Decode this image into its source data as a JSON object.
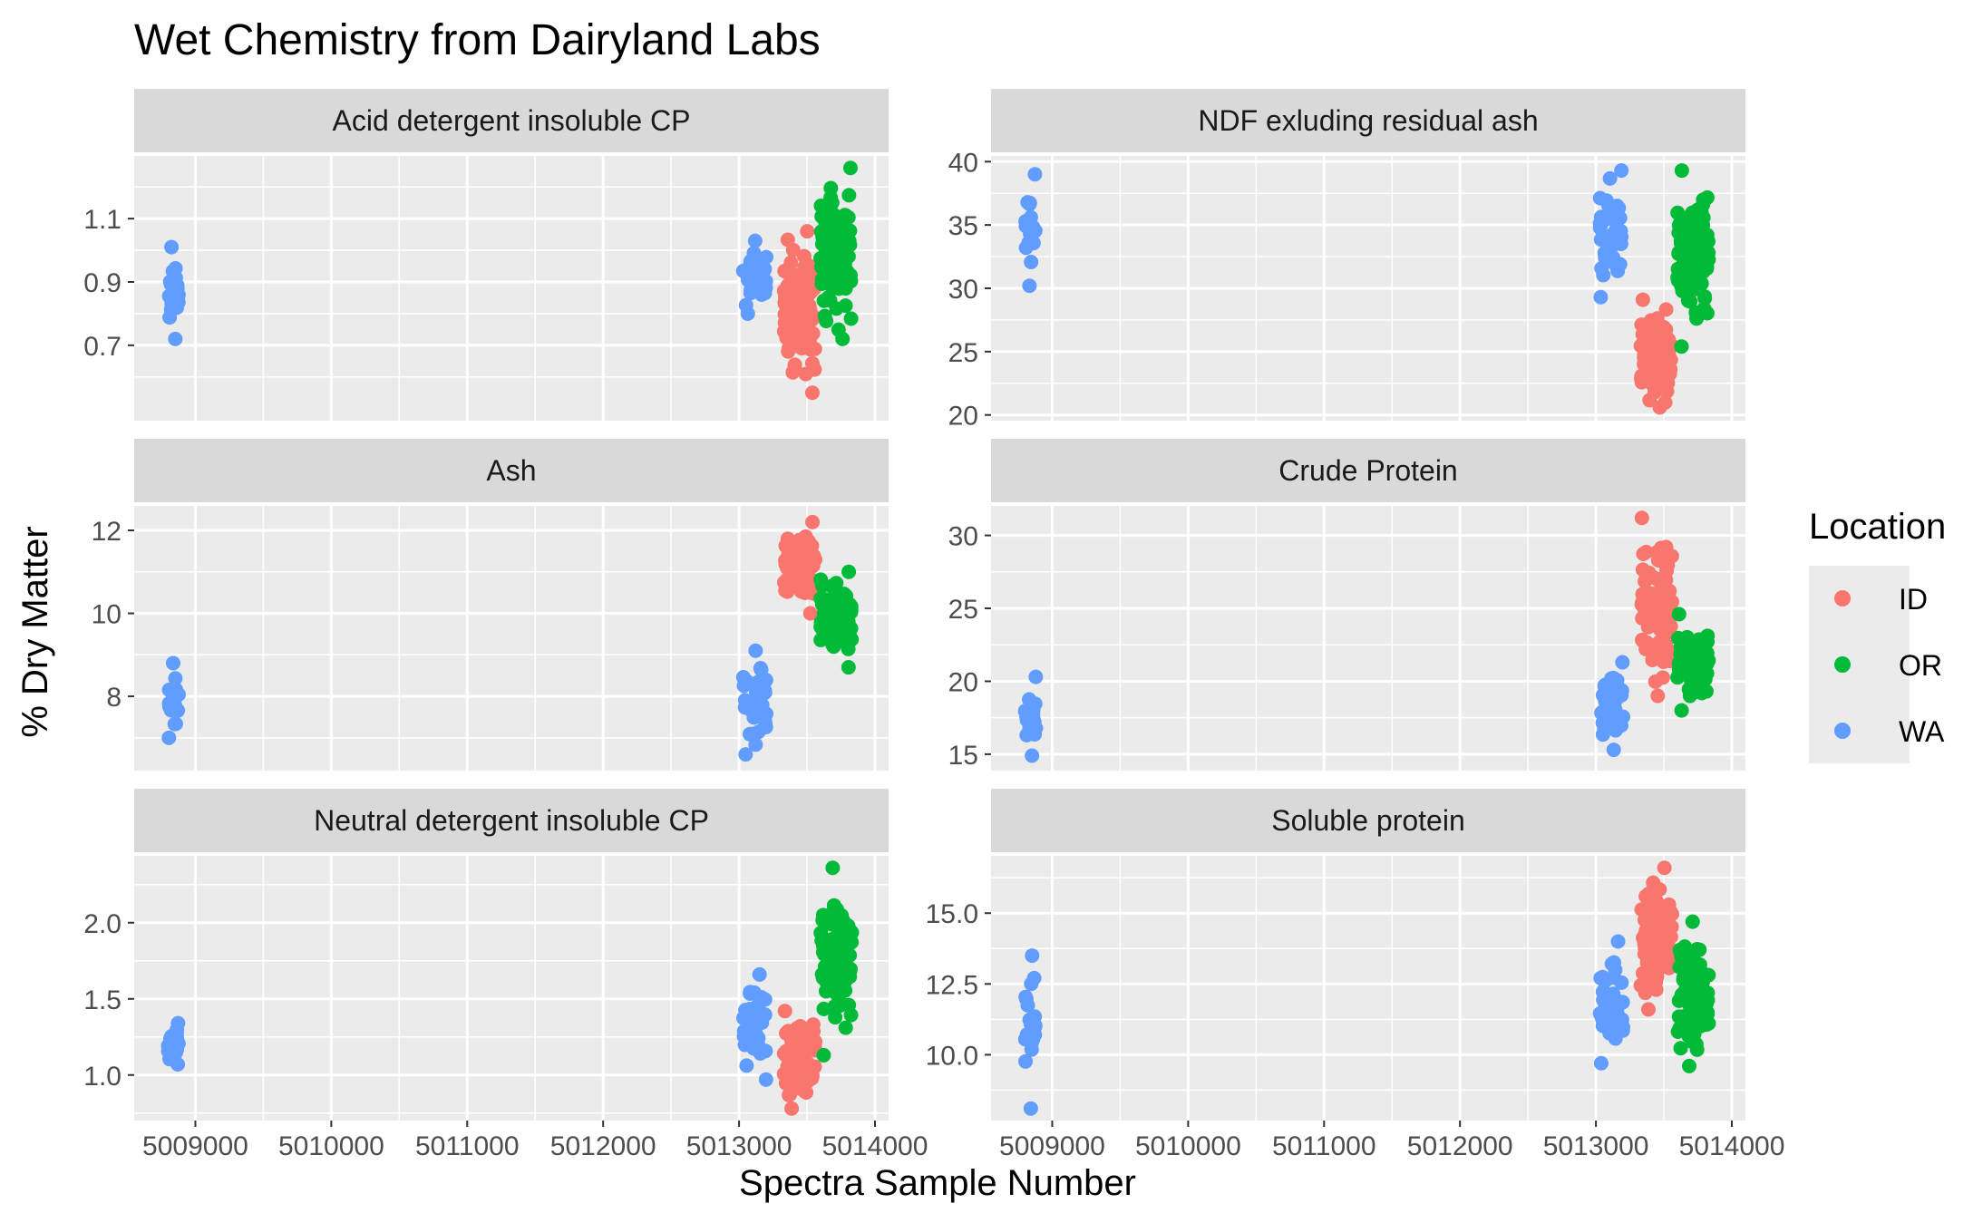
{
  "chart_data": {
    "type": "scatter",
    "title": "Wet Chemistry from Dairyland Labs",
    "xlabel": "Spectra Sample Number",
    "ylabel": "% Dry Matter",
    "xlim": [
      5008550,
      5014100
    ],
    "x_ticks": [
      5009000,
      5010000,
      5011000,
      5012000,
      5013000,
      5014000
    ],
    "grid": true,
    "legend": {
      "title": "Location",
      "placement": "right",
      "entries": [
        {
          "name": "ID",
          "color": "#F8766D"
        },
        {
          "name": "OR",
          "color": "#00BA38"
        },
        {
          "name": "WA",
          "color": "#619CFF"
        }
      ]
    },
    "facets": [
      {
        "label": "Acid detergent insoluble CP",
        "ylim": [
          0.5,
          1.26
        ],
        "y_ticks": [
          0.7,
          0.9,
          1.1
        ],
        "y_tick_labels": [
          "0.7",
          "0.9",
          "1.1"
        ],
        "groups": [
          {
            "location": "WA",
            "x_range": [
              5008800,
              5008880
            ],
            "y_range": [
              0.72,
              1.01
            ],
            "n": 22
          },
          {
            "location": "WA",
            "x_range": [
              5013030,
              5013200
            ],
            "y_range": [
              0.8,
              1.03
            ],
            "n": 40
          },
          {
            "location": "ID",
            "x_range": [
              5013330,
              5013560
            ],
            "y_range": [
              0.55,
              1.06
            ],
            "n": 95
          },
          {
            "location": "OR",
            "x_range": [
              5013600,
              5013830
            ],
            "y_range": [
              0.72,
              1.26
            ],
            "n": 90
          }
        ]
      },
      {
        "label": "NDF exluding residual ash",
        "ylim": [
          20.5,
          39.5
        ],
        "y_ticks": [
          20,
          25,
          30,
          35,
          40
        ],
        "y_tick_labels": [
          "20",
          "25",
          "30",
          "35",
          "40"
        ],
        "groups": [
          {
            "location": "WA",
            "x_range": [
              5008800,
              5008880
            ],
            "y_range": [
              30.2,
              39.0
            ],
            "n": 22
          },
          {
            "location": "WA",
            "x_range": [
              5013030,
              5013200
            ],
            "y_range": [
              29.3,
              39.3
            ],
            "n": 40
          },
          {
            "location": "ID",
            "x_range": [
              5013330,
              5013560
            ],
            "y_range": [
              20.6,
              29.1
            ],
            "n": 95
          },
          {
            "location": "OR",
            "x_range": [
              5013600,
              5013830
            ],
            "y_range": [
              25.4,
              39.3
            ],
            "n": 90
          }
        ]
      },
      {
        "label": "Ash",
        "ylim": [
          6.5,
          12.3
        ],
        "y_ticks": [
          8,
          10,
          12
        ],
        "y_tick_labels": [
          "8",
          "10",
          "12"
        ],
        "groups": [
          {
            "location": "WA",
            "x_range": [
              5008800,
              5008880
            ],
            "y_range": [
              7.0,
              8.8
            ],
            "n": 22
          },
          {
            "location": "WA",
            "x_range": [
              5013030,
              5013200
            ],
            "y_range": [
              6.6,
              9.1
            ],
            "n": 40
          },
          {
            "location": "ID",
            "x_range": [
              5013330,
              5013560
            ],
            "y_range": [
              10.0,
              12.2
            ],
            "n": 95
          },
          {
            "location": "OR",
            "x_range": [
              5013600,
              5013830
            ],
            "y_range": [
              8.7,
              11.0
            ],
            "n": 90
          }
        ]
      },
      {
        "label": "Crude Protein",
        "ylim": [
          14.7,
          31.2
        ],
        "y_ticks": [
          15,
          20,
          25,
          30
        ],
        "y_tick_labels": [
          "15",
          "20",
          "25",
          "30"
        ],
        "groups": [
          {
            "location": "WA",
            "x_range": [
              5008800,
              5008880
            ],
            "y_range": [
              14.9,
              20.3
            ],
            "n": 22
          },
          {
            "location": "WA",
            "x_range": [
              5013030,
              5013200
            ],
            "y_range": [
              15.3,
              21.3
            ],
            "n": 40
          },
          {
            "location": "ID",
            "x_range": [
              5013330,
              5013560
            ],
            "y_range": [
              19.0,
              31.2
            ],
            "n": 95
          },
          {
            "location": "OR",
            "x_range": [
              5013600,
              5013830
            ],
            "y_range": [
              18.0,
              24.6
            ],
            "n": 90
          }
        ]
      },
      {
        "label": "Neutral detergent insoluble CP",
        "ylim": [
          0.78,
          2.36
        ],
        "y_ticks": [
          1.0,
          1.5,
          2.0
        ],
        "y_tick_labels": [
          "1.0",
          "1.5",
          "2.0"
        ],
        "groups": [
          {
            "location": "WA",
            "x_range": [
              5008800,
              5008880
            ],
            "y_range": [
              1.07,
              1.34
            ],
            "n": 22
          },
          {
            "location": "WA",
            "x_range": [
              5013030,
              5013200
            ],
            "y_range": [
              0.97,
              1.66
            ],
            "n": 40
          },
          {
            "location": "ID",
            "x_range": [
              5013330,
              5013560
            ],
            "y_range": [
              0.78,
              1.42
            ],
            "n": 95
          },
          {
            "location": "OR",
            "x_range": [
              5013600,
              5013830
            ],
            "y_range": [
              1.13,
              2.36
            ],
            "n": 90
          }
        ]
      },
      {
        "label": "Soluble protein",
        "ylim": [
          8.1,
          16.6
        ],
        "y_ticks": [
          10.0,
          12.5,
          15.0
        ],
        "y_tick_labels": [
          "10.0",
          "12.5",
          "15.0"
        ],
        "groups": [
          {
            "location": "WA",
            "x_range": [
              5008800,
              5008880
            ],
            "y_range": [
              8.1,
              13.5
            ],
            "n": 22
          },
          {
            "location": "WA",
            "x_range": [
              5013030,
              5013200
            ],
            "y_range": [
              9.7,
              14.0
            ],
            "n": 40
          },
          {
            "location": "ID",
            "x_range": [
              5013330,
              5013560
            ],
            "y_range": [
              11.6,
              16.6
            ],
            "n": 95
          },
          {
            "location": "OR",
            "x_range": [
              5013600,
              5013830
            ],
            "y_range": [
              9.6,
              14.7
            ],
            "n": 90
          }
        ]
      }
    ]
  }
}
